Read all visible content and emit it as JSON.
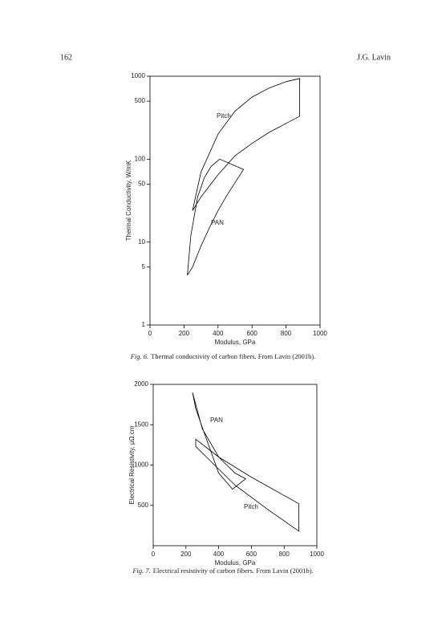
{
  "header": {
    "page_number": "162",
    "author": "J.G. Lavin"
  },
  "chart_data": [
    {
      "type": "line",
      "closed": true,
      "log_y": true,
      "figure_label": "Fig. 6.",
      "caption": "Thermal conductivity of carbon fibers. From Lavin (2001b).",
      "x_label": "Modulus, GPa",
      "y_label": "Thermal Conductivity, W/mK",
      "xlim": [
        0,
        1000
      ],
      "xticks": [
        0,
        200,
        400,
        600,
        800,
        1000
      ],
      "ylim": [
        1,
        1000
      ],
      "yticks": [
        1,
        5,
        10,
        50,
        100,
        500,
        1000
      ],
      "series": [
        {
          "name": "Pitch",
          "color": "#000000",
          "x": [
            250,
            300,
            400,
            500,
            600,
            700,
            800,
            880,
            880,
            800,
            700,
            600,
            500,
            400,
            300,
            250
          ],
          "values": [
            24,
            70,
            200,
            380,
            560,
            720,
            860,
            940,
            330,
            270,
            210,
            155,
            110,
            65,
            35,
            24
          ]
        },
        {
          "name": "PAN",
          "color": "#000000",
          "x": [
            220,
            240,
            280,
            320,
            360,
            410,
            550,
            500,
            450,
            400,
            350,
            300,
            250,
            220
          ],
          "values": [
            4,
            12,
            35,
            60,
            82,
            100,
            75,
            52,
            36,
            24,
            15,
            9,
            5,
            4
          ]
        }
      ]
    },
    {
      "type": "line",
      "closed": true,
      "log_y": false,
      "figure_label": "Fig. 7.",
      "caption": "Electrical resistivity of carbon fibers. From Lavin (2001b).",
      "x_label": "Modulus, GPa",
      "y_label": "Electrical Resistivity, μΩ.cm",
      "xlim": [
        0,
        1000
      ],
      "xticks": [
        0,
        200,
        400,
        600,
        800,
        1000
      ],
      "ylim": [
        0,
        2000
      ],
      "yticks": [
        500,
        1000,
        1500,
        2000
      ],
      "series": [
        {
          "name": "PAN",
          "color": "#000000",
          "x": [
            240,
            300,
            400,
            500,
            565,
            485,
            400,
            320,
            260,
            240
          ],
          "values": [
            1900,
            1450,
            1100,
            900,
            830,
            700,
            900,
            1350,
            1700,
            1900
          ]
        },
        {
          "name": "Pitch",
          "color": "#000000",
          "x": [
            260,
            400,
            600,
            890,
            890,
            700,
            500,
            350,
            260,
            260
          ],
          "values": [
            1320,
            1100,
            850,
            520,
            180,
            450,
            750,
            1050,
            1230,
            1320
          ]
        }
      ]
    }
  ]
}
